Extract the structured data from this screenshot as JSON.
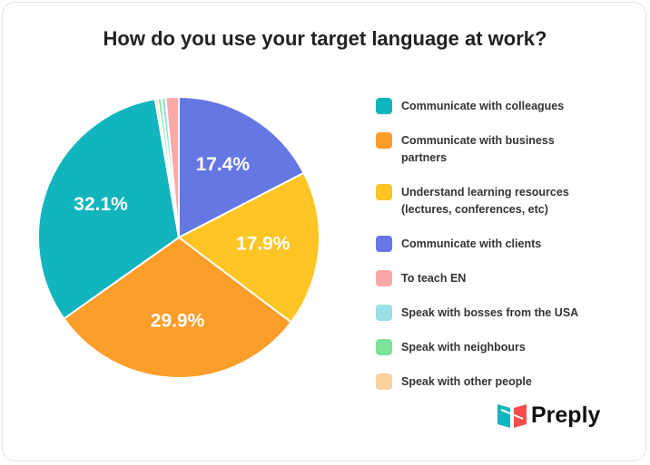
{
  "chart_data": {
    "type": "pie",
    "title": "How do you use your target language at work?",
    "categories": [
      "Communicate with colleagues",
      "Communicate with business partners",
      "Understand learning resources (lectures, conferences, etc)",
      "Communicate with clients",
      "To teach EN",
      "Speak with bosses from the USA",
      "Speak with neighbours",
      "Speak with other people"
    ],
    "values": [
      32.1,
      29.9,
      17.9,
      17.4,
      1.5,
      0.5,
      0.4,
      0.3
    ],
    "value_labels": [
      "32.1%",
      "29.9%",
      "17.9%",
      "17.4%",
      null,
      null,
      null,
      null
    ],
    "colors": [
      "#12b5bd",
      "#fd9d2a",
      "#fec524",
      "#6577e3",
      "#fca8a8",
      "#9adfe4",
      "#7de29a",
      "#fdcf9d"
    ],
    "legend": "right"
  },
  "brand": "Preply"
}
